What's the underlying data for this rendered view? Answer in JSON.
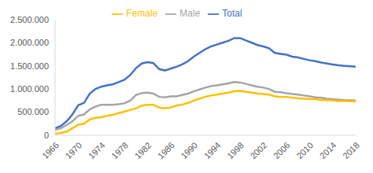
{
  "chart_data": {
    "type": "line",
    "x": [
      1966,
      1967,
      1968,
      1969,
      1970,
      1971,
      1972,
      1973,
      1974,
      1975,
      1976,
      1977,
      1978,
      1979,
      1980,
      1981,
      1982,
      1983,
      1984,
      1985,
      1986,
      1987,
      1988,
      1989,
      1990,
      1991,
      1992,
      1993,
      1994,
      1995,
      1996,
      1997,
      1998,
      1999,
      2000,
      2001,
      2002,
      2003,
      2004,
      2005,
      2006,
      2007,
      2008,
      2009,
      2010,
      2011,
      2012,
      2013,
      2014,
      2015,
      2016,
      2017,
      2018
    ],
    "series": [
      {
        "name": "Male",
        "color": "#a5a5a5",
        "values": [
          120000,
          150000,
          220000,
          300000,
          420000,
          450000,
          560000,
          620000,
          660000,
          660000,
          660000,
          670000,
          690000,
          750000,
          870000,
          910000,
          920000,
          900000,
          830000,
          820000,
          840000,
          840000,
          870000,
          900000,
          950000,
          990000,
          1030000,
          1060000,
          1080000,
          1100000,
          1120000,
          1150000,
          1140000,
          1110000,
          1080000,
          1050000,
          1030000,
          1000000,
          940000,
          930000,
          910000,
          890000,
          880000,
          860000,
          840000,
          820000,
          810000,
          790000,
          780000,
          770000,
          760000,
          755000,
          750000
        ]
      },
      {
        "name": "Female",
        "color": "#ffc000",
        "values": [
          30000,
          50000,
          80000,
          150000,
          230000,
          250000,
          340000,
          380000,
          390000,
          420000,
          440000,
          480000,
          510000,
          550000,
          580000,
          640000,
          660000,
          660000,
          600000,
          580000,
          600000,
          640000,
          660000,
          700000,
          750000,
          790000,
          830000,
          860000,
          880000,
          900000,
          920000,
          950000,
          960000,
          940000,
          920000,
          900000,
          890000,
          880000,
          840000,
          830000,
          830000,
          810000,
          800000,
          790000,
          780000,
          780000,
          760000,
          760000,
          750000,
          740000,
          740000,
          735000,
          730000
        ]
      },
      {
        "name": "Total",
        "color": "#4472c4",
        "values": [
          150000,
          200000,
          300000,
          450000,
          650000,
          700000,
          900000,
          1000000,
          1050000,
          1080000,
          1100000,
          1150000,
          1200000,
          1300000,
          1450000,
          1550000,
          1580000,
          1560000,
          1430000,
          1400000,
          1440000,
          1480000,
          1530000,
          1600000,
          1700000,
          1780000,
          1860000,
          1920000,
          1960000,
          2000000,
          2040000,
          2100000,
          2100000,
          2050000,
          2000000,
          1950000,
          1920000,
          1880000,
          1780000,
          1760000,
          1740000,
          1700000,
          1680000,
          1650000,
          1620000,
          1600000,
          1570000,
          1550000,
          1530000,
          1510000,
          1500000,
          1490000,
          1480000
        ]
      }
    ],
    "xlim": [
      1966,
      2018
    ],
    "xticks": [
      1966,
      1970,
      1974,
      1978,
      1982,
      1986,
      1990,
      1994,
      1998,
      2002,
      2006,
      2010,
      2014,
      2018
    ],
    "ylim": [
      0,
      2500000
    ],
    "yticks": [
      0,
      {
        "value": 500000,
        "label": "500.000"
      },
      {
        "value": 1000000,
        "label": "1.000.000"
      },
      {
        "value": 1500000,
        "label": "1.500.000"
      },
      {
        "value": 2000000,
        "label": "2.000.000"
      },
      {
        "value": 2500000,
        "label": "2.500.000"
      }
    ],
    "grid": false,
    "legend": "top"
  }
}
